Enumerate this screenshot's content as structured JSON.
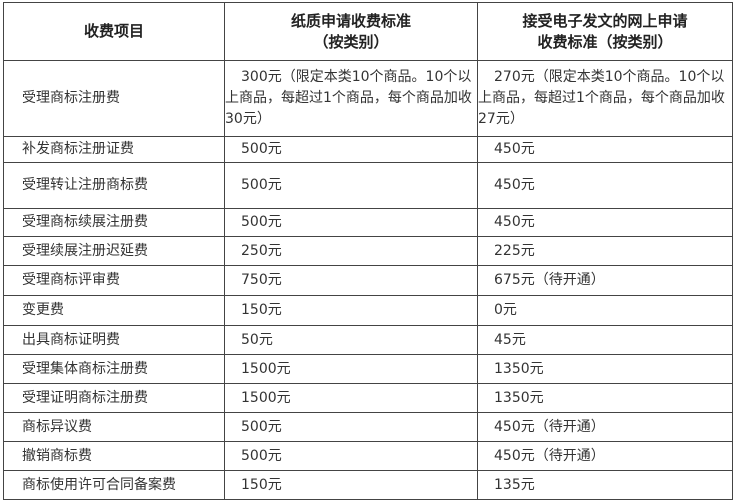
{
  "header": {
    "col0": "收费项目",
    "col1_line1": "纸质申请收费标准",
    "col1_line2": "（按类别）",
    "col2_line1": "接受电子发文的网上申请",
    "col2_line2": "收费标准（按类别）"
  },
  "rows": [
    {
      "item": "受理商标注册费",
      "paper": "300元（限定本类10个商品。10个以上商品，每超过1个商品，每个商品加收30元）",
      "online": "270元（限定本类10个商品。10个以上商品，每超过1个商品，每个商品加收27元）"
    },
    {
      "item": "补发商标注册证费",
      "paper": "500元",
      "online": "450元"
    },
    {
      "item": "受理转让注册商标费",
      "paper": "500元",
      "online": "450元"
    },
    {
      "item": "受理商标续展注册费",
      "paper": "500元",
      "online": "450元"
    },
    {
      "item": "受理续展注册迟延费",
      "paper": "250元",
      "online": "225元"
    },
    {
      "item": "受理商标评审费",
      "paper": "750元",
      "online": "675元（待开通）"
    },
    {
      "item": "变更费",
      "paper": "150元",
      "online": "0元"
    },
    {
      "item": "出具商标证明费",
      "paper": "50元",
      "online": "45元"
    },
    {
      "item": "受理集体商标注册费",
      "paper": "1500元",
      "online": "1350元"
    },
    {
      "item": "受理证明商标注册费",
      "paper": "1500元",
      "online": "1350元"
    },
    {
      "item": "商标异议费",
      "paper": "500元",
      "online": "450元（待开通）"
    },
    {
      "item": "撤销商标费",
      "paper": "500元",
      "online": "450元（待开通）"
    },
    {
      "item": "商标使用许可合同备案费",
      "paper": "150元",
      "online": "135元"
    }
  ]
}
